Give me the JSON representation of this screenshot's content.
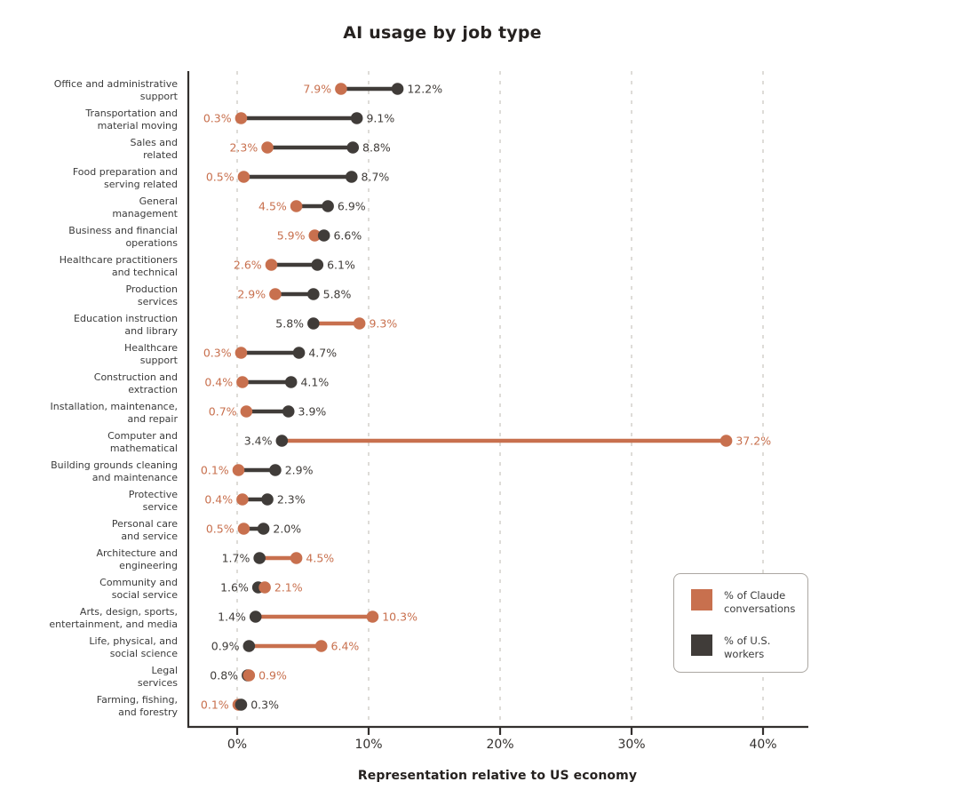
{
  "title": "AI usage by job type",
  "x_axis": {
    "label": "Representation relative to US economy",
    "tick_values": [
      0,
      10,
      20,
      30,
      40
    ],
    "tick_labels": [
      "0%",
      "10%",
      "20%",
      "30%",
      "40%"
    ]
  },
  "legend": {
    "items": [
      {
        "color_key": "claude",
        "label_lines": [
          "% of Claude",
          "conversations"
        ]
      },
      {
        "color_key": "workers",
        "label_lines": [
          "% of U.S.",
          "workers"
        ]
      }
    ]
  },
  "colors": {
    "claude": "#c8704e",
    "workers": "#403c39",
    "grid": "#d6d3ce",
    "axis": "#33302e",
    "category_text": "#3b3b3b",
    "tick_text": "#33302e",
    "title_text": "#262220"
  },
  "chart_data": {
    "type": "dumbbell",
    "title": "AI usage by job type",
    "xlabel": "Representation relative to US economy",
    "xlim": [
      0,
      40
    ],
    "x_ticks": [
      0,
      10,
      20,
      30,
      40
    ],
    "x_tick_labels": [
      "0%",
      "10%",
      "20%",
      "30%",
      "40%"
    ],
    "value_suffix": "%",
    "grid": "vertical-dashed",
    "legend_position": "lower-right",
    "categories": [
      "Office and administrative support",
      "Transportation and material moving",
      "Sales and related",
      "Food preparation and serving related",
      "General management",
      "Business and financial operations",
      "Healthcare practitioners and technical",
      "Production services",
      "Education instruction and library",
      "Healthcare support",
      "Construction and extraction",
      "Installation, maintenance, and repair",
      "Computer and mathematical",
      "Building grounds cleaning and maintenance",
      "Protective service",
      "Personal care and service",
      "Architecture and engineering",
      "Community and social service",
      "Arts, design, sports, entertainment, and media",
      "Life, physical, and social science",
      "Legal services",
      "Farming, fishing, and forestry"
    ],
    "category_label_lines": [
      [
        "Office and administrative",
        "support"
      ],
      [
        "Transportation and",
        "material moving"
      ],
      [
        "Sales and",
        "related"
      ],
      [
        "Food preparation and",
        "serving related"
      ],
      [
        "General",
        "management"
      ],
      [
        "Business and financial",
        "operations"
      ],
      [
        "Healthcare practitioners",
        "and technical"
      ],
      [
        "Production",
        "services"
      ],
      [
        "Education instruction",
        "and library"
      ],
      [
        "Healthcare",
        "support"
      ],
      [
        "Construction and",
        "extraction"
      ],
      [
        "Installation, maintenance,",
        "and repair"
      ],
      [
        "Computer and",
        "mathematical"
      ],
      [
        "Building grounds cleaning",
        "and maintenance"
      ],
      [
        "Protective",
        "service"
      ],
      [
        "Personal care",
        "and service"
      ],
      [
        "Architecture and",
        "engineering"
      ],
      [
        "Community and",
        "social service"
      ],
      [
        "Arts, design, sports,",
        "entertainment, and media"
      ],
      [
        "Life, physical, and",
        "social science"
      ],
      [
        "Legal",
        "services"
      ],
      [
        "Farming, fishing,",
        "and forestry"
      ]
    ],
    "series": [
      {
        "name": "% of Claude conversations",
        "color_key": "claude",
        "values": [
          7.9,
          0.3,
          2.3,
          0.5,
          4.5,
          5.9,
          2.6,
          2.9,
          9.3,
          0.3,
          0.4,
          0.7,
          37.2,
          0.1,
          0.4,
          0.5,
          4.5,
          2.1,
          10.3,
          6.4,
          0.9,
          0.1
        ]
      },
      {
        "name": "% of U.S. workers",
        "color_key": "workers",
        "values": [
          12.2,
          9.1,
          8.8,
          8.7,
          6.9,
          6.6,
          6.1,
          5.8,
          5.8,
          4.7,
          4.1,
          3.9,
          3.4,
          2.9,
          2.3,
          2.0,
          1.7,
          1.6,
          1.4,
          0.9,
          0.8,
          0.3
        ]
      }
    ]
  }
}
